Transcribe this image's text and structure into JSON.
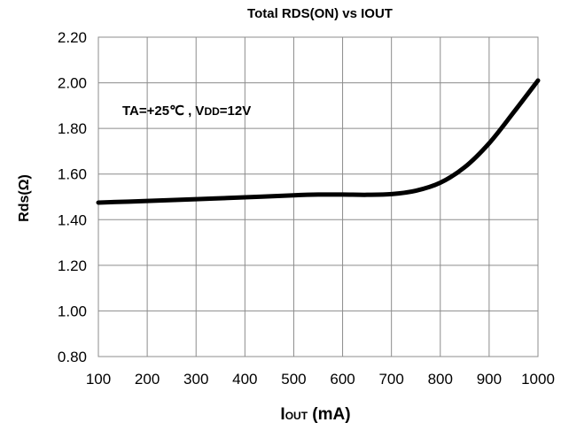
{
  "chart_data": {
    "type": "line",
    "title": "Total RDS(ON)  vs  IOUT",
    "xlabel": {
      "main": "I",
      "sub": "OUT",
      "rest": " (mA)"
    },
    "ylabel": "Rds(Ω)",
    "annotation": {
      "pre": "TA=+25℃ , V",
      "sub": "DD",
      "post": "=12V"
    },
    "x": [
      100,
      200,
      300,
      400,
      500,
      550,
      600,
      650,
      700,
      750,
      800,
      850,
      900,
      950,
      1000
    ],
    "series": [
      {
        "values": [
          1.475,
          1.482,
          1.49,
          1.498,
          1.507,
          1.51,
          1.51,
          1.509,
          1.512,
          1.527,
          1.562,
          1.63,
          1.735,
          1.87,
          2.01
        ]
      }
    ],
    "xlim": [
      100,
      1000
    ],
    "ylim": [
      0.8,
      2.2
    ],
    "xticks": [
      "100",
      "200",
      "300",
      "400",
      "500",
      "600",
      "700",
      "800",
      "900",
      "1000"
    ],
    "yticks": [
      "0.80",
      "1.00",
      "1.20",
      "1.40",
      "1.60",
      "1.80",
      "2.00",
      "2.20"
    ],
    "grid": true,
    "line_color": "#000000",
    "grid_color": "#8c8c8c"
  }
}
